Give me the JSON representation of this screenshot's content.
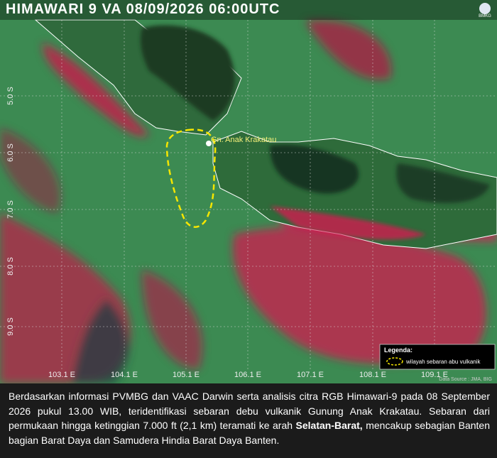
{
  "header": {
    "title": "HIMAWARI 9 VA  08/09/2026  06:00UTC",
    "logo": "BMKG"
  },
  "map": {
    "volcano_label": "Gn. Anak Krakatau",
    "longitude_labels": [
      "103.1 E",
      "104.1 E",
      "105.1 E",
      "106.1 E",
      "107.1 E",
      "108.1 E",
      "109.1 E"
    ],
    "latitude_labels": [
      "5.0 S",
      "6.0 S",
      "7.0 S",
      "8.0 S",
      "9.0 S"
    ],
    "source": "Data Source : JMA, BIG"
  },
  "legend": {
    "title": "Legenda:",
    "item": "wilayah sebaran abu vulkanik"
  },
  "caption": {
    "text_before": "Berdasarkan informasi PVMBG dan VAAC Darwin serta analisis citra RGB Himawari-9 pada 08 September 2026 pukul 13.00 WIB, teridentifikasi sebaran debu vulkanik Gunung Anak Krakatau. Sebaran dari permukaan hingga ketinggian 7.000 ft (2,1 km) teramati ke arah",
    "bold": "Selatan-Barat,",
    "text_after": "mencakup sebagian Banten bagian Barat Daya dan Samudera Hindia Barat Daya Banten."
  }
}
